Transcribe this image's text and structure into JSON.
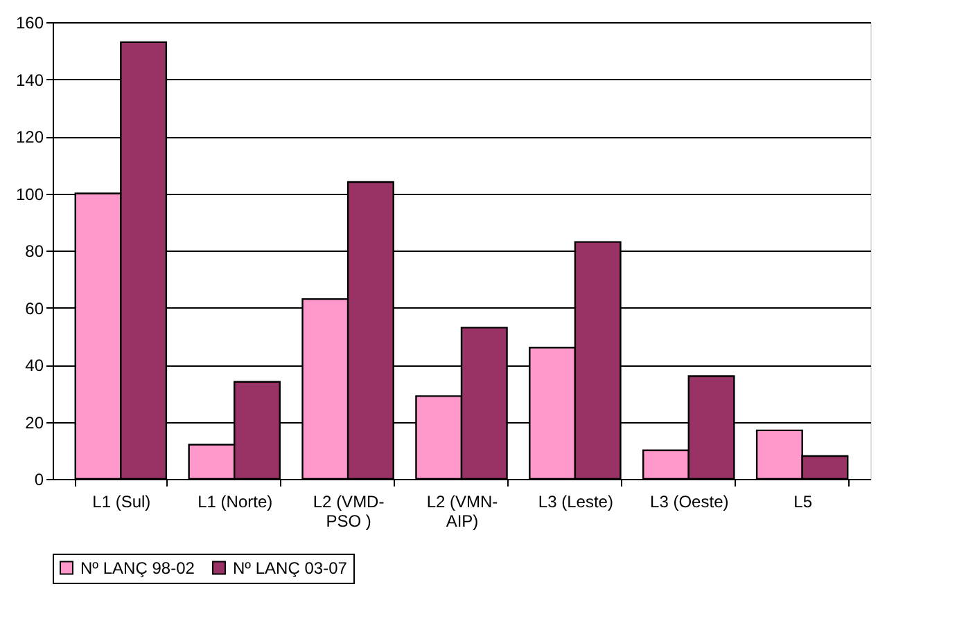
{
  "chart_data": {
    "type": "bar",
    "categories": [
      "L1     (Sul)",
      "L1 (Norte)",
      "L2 (VMD-PSO )",
      "L2 (VMN-AIP)",
      "L3 (Leste)",
      "L3 (Oeste)",
      "L5"
    ],
    "series": [
      {
        "name": "Nº LANÇ 98-02",
        "color": "#ff99cc",
        "values": [
          100,
          12,
          63,
          29,
          46,
          10,
          17
        ]
      },
      {
        "name": "Nº LANÇ 03-07",
        "color": "#993366",
        "values": [
          153,
          34,
          104,
          53,
          83,
          36,
          8
        ]
      }
    ],
    "ylim": [
      0,
      160
    ],
    "yticks": [
      0,
      20,
      40,
      60,
      80,
      100,
      120,
      140,
      160
    ],
    "grid": "y",
    "legend": "bottom"
  }
}
